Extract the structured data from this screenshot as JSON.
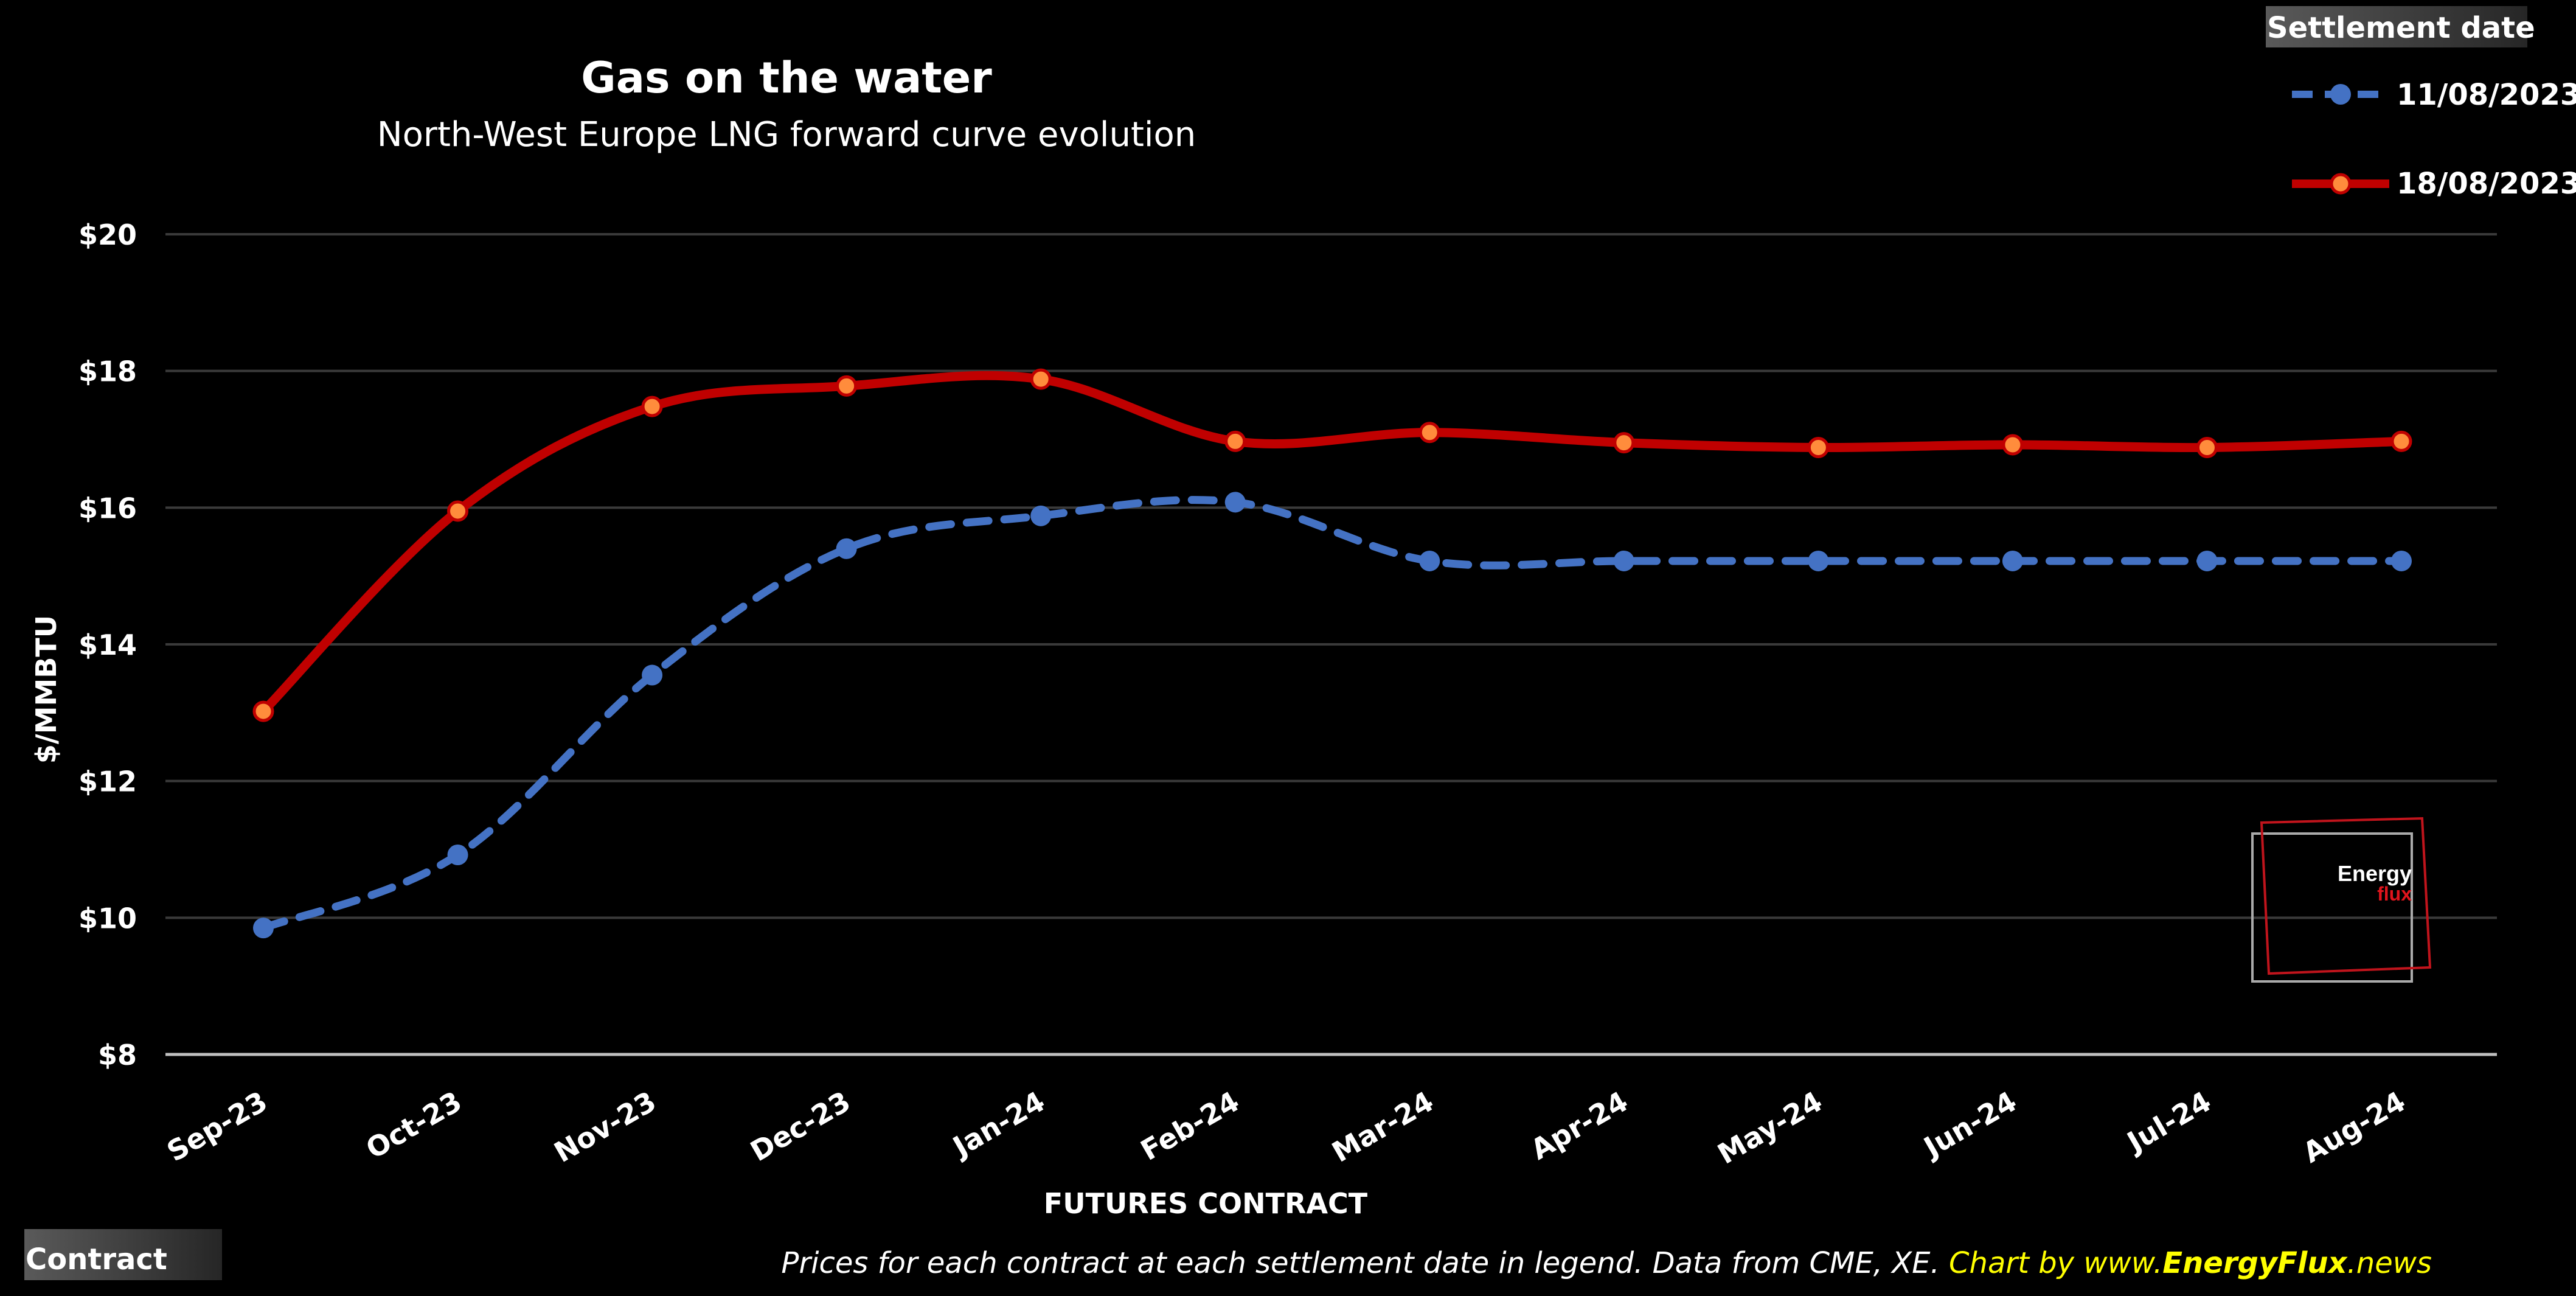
{
  "chart_data": {
    "type": "line",
    "title": "Gas on the water",
    "subtitle": "North-West Europe LNG forward curve evolution",
    "xlabel": "FUTURES CONTRACT",
    "ylabel": "$/MMBTU",
    "ylim": [
      8,
      20
    ],
    "yticks": [
      8,
      10,
      12,
      14,
      16,
      18,
      20
    ],
    "ytick_labels": [
      "$8",
      "$10",
      "$12",
      "$14",
      "$16",
      "$18",
      "$20"
    ],
    "categories": [
      "Sep-23",
      "Oct-23",
      "Nov-23",
      "Dec-23",
      "Jan-24",
      "Feb-24",
      "Mar-24",
      "Apr-24",
      "May-24",
      "Jun-24",
      "Jul-24",
      "Aug-24"
    ],
    "grid": true,
    "legend_title": "Settlement date",
    "legend_position": "top-right",
    "series": [
      {
        "name": "11/08/2023",
        "color": "#4472C4",
        "line_style": "dashed",
        "values": [
          9.85,
          10.92,
          13.55,
          15.4,
          15.88,
          16.08,
          15.22,
          15.22,
          15.22,
          15.22,
          15.22,
          15.22
        ]
      },
      {
        "name": "18/08/2023",
        "color": "#C00000",
        "marker_color": "#FF8C3C",
        "line_style": "solid",
        "values": [
          13.02,
          15.95,
          17.48,
          17.78,
          17.88,
          16.97,
          17.1,
          16.95,
          16.88,
          16.92,
          16.88,
          16.97
        ]
      }
    ],
    "footer": {
      "note": "Prices for each contract at each settlement date in legend. Data from CME, XE.",
      "credit_prefix": "Chart by www.",
      "credit_brand": "EnergyFlux",
      "credit_suffix": ".news"
    },
    "field_button_label": "Contract",
    "logo": {
      "line1": "Energy",
      "line2": "flux"
    }
  }
}
